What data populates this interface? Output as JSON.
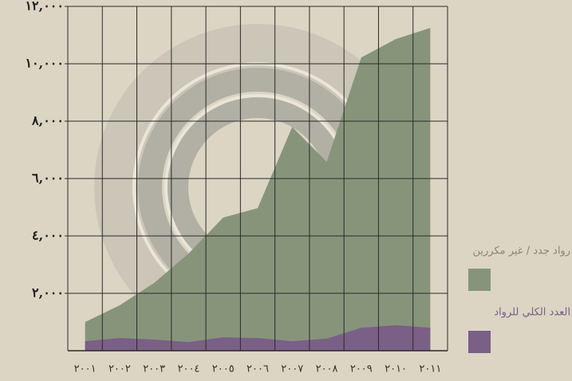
{
  "chart_data": {
    "type": "area",
    "categories": [
      "٢٠٠١",
      "٢٠٠٢",
      "٢٠٠٣",
      "٢٠٠٤",
      "٢٠٠٥",
      "٢٠٠٦",
      "٢٠٠٧",
      "٢٠٠٨",
      "٢٠٠٩",
      "٢٠١٠",
      "٢٠١١"
    ],
    "series": [
      {
        "name": "رواد جدد / غير مكررين",
        "color": "#86957a",
        "values": [
          1000,
          1580,
          2360,
          3390,
          4640,
          4970,
          7800,
          6580,
          10220,
          10860,
          11250
        ]
      },
      {
        "name": "العدد الكلي للرواد",
        "color": "#7a5f86",
        "values": [
          330,
          440,
          390,
          300,
          470,
          440,
          330,
          420,
          800,
          890,
          800
        ]
      }
    ],
    "ylim": [
      0,
      12000
    ],
    "yticks": [
      {
        "value": 2000,
        "label": "٢,٠٠٠"
      },
      {
        "value": 4000,
        "label": "٤,٠٠٠"
      },
      {
        "value": 6000,
        "label": "٦,٠٠٠"
      },
      {
        "value": 8000,
        "label": "٨,٠٠٠"
      },
      {
        "value": 10000,
        "label": "١٠,٠٠٠"
      },
      {
        "value": 12000,
        "label": "١٢,٠٠٠"
      }
    ],
    "grid": true
  }
}
